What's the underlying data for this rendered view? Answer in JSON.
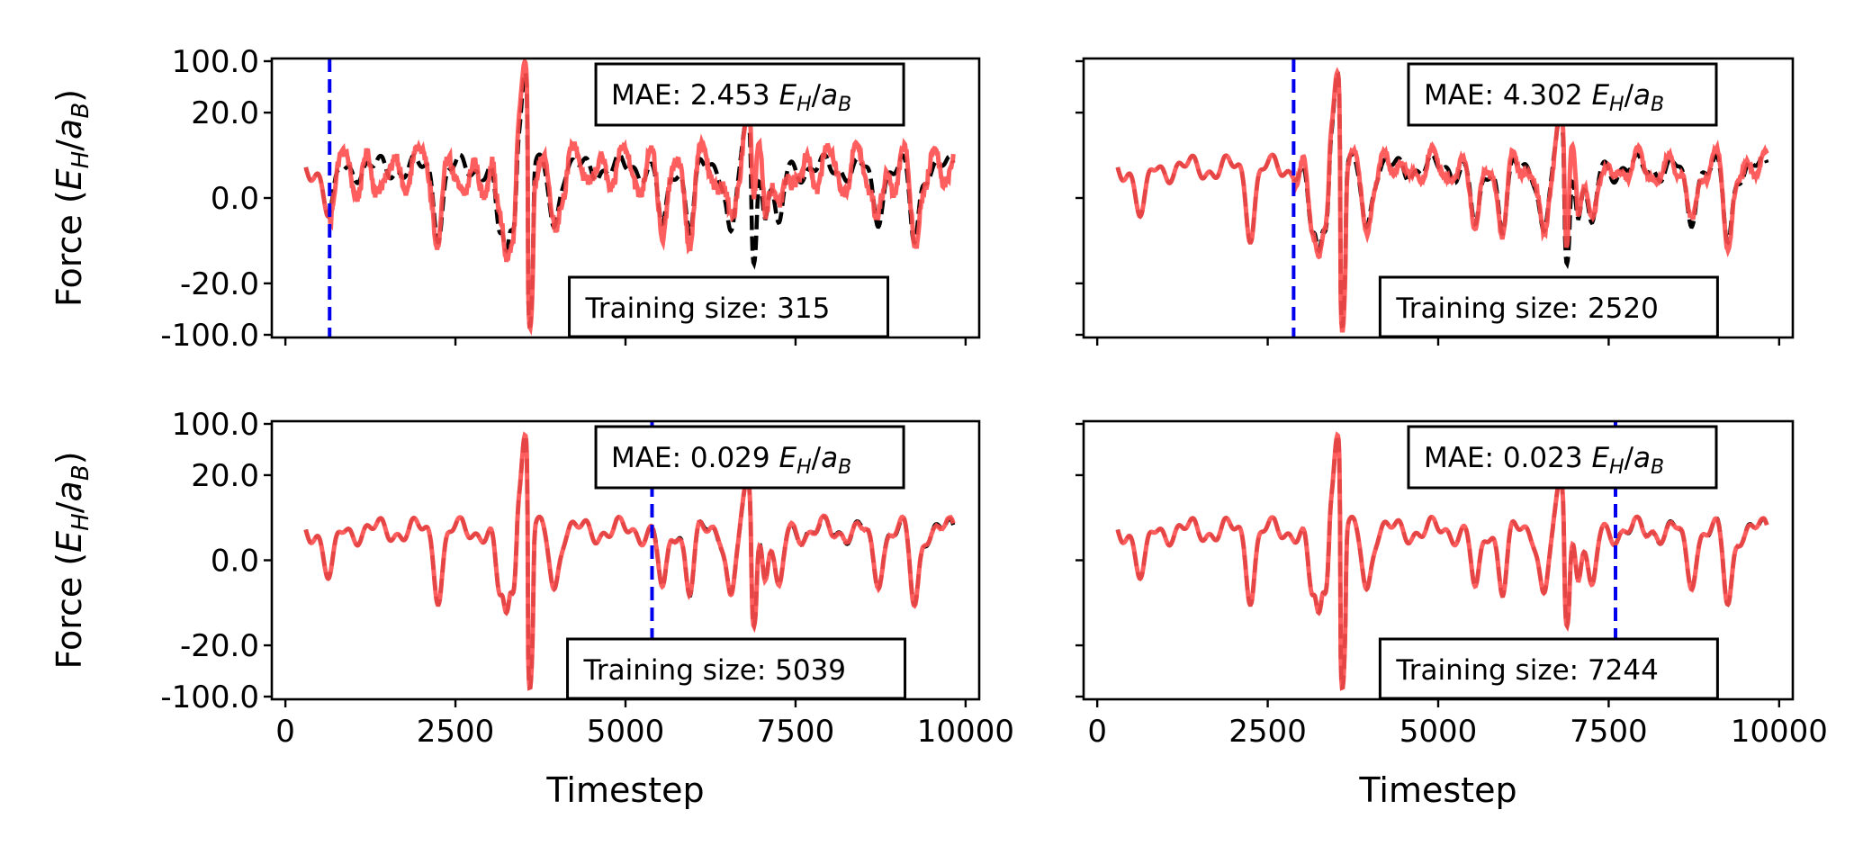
{
  "chart_data": [
    {
      "type": "line",
      "panel": "top-left",
      "ylabel": "Force (E_H/a_B)",
      "xlabel": "",
      "ylim": [
        -100,
        100
      ],
      "yscale": "symlog",
      "xlim": [
        -200,
        10200
      ],
      "yticks": [
        -100.0,
        -20.0,
        0.0,
        20.0,
        100.0
      ],
      "ytick_labels": [
        "-100.0",
        "-20.0",
        "0.0",
        "20.0",
        "100.0"
      ],
      "show_yticklabels": true,
      "show_xticklabels": false,
      "annotation_mae": "MAE: 2.453 E_H/a_B",
      "annotation_training": "Training size: 315",
      "training_split_x": 650,
      "series": [
        {
          "style": "reference-dashed-black"
        },
        {
          "style": "prediction-red"
        }
      ]
    },
    {
      "type": "line",
      "panel": "top-right",
      "ylabel": "",
      "xlabel": "",
      "ylim": [
        -100,
        100
      ],
      "yscale": "symlog",
      "xlim": [
        -200,
        10200
      ],
      "show_yticklabels": false,
      "show_xticklabels": false,
      "annotation_mae": "MAE: 4.302 E_H/a_B",
      "annotation_training": "Training size: 2520",
      "training_split_x": 2880,
      "series": [
        {
          "style": "reference-dashed-black"
        },
        {
          "style": "prediction-red"
        }
      ]
    },
    {
      "type": "line",
      "panel": "bottom-left",
      "ylabel": "Force (E_H/a_B)",
      "xlabel": "Timestep",
      "ylim": [
        -100,
        100
      ],
      "yscale": "symlog",
      "xlim": [
        -200,
        10200
      ],
      "xticks": [
        0,
        2500,
        5000,
        7500,
        10000
      ],
      "show_yticklabels": true,
      "show_xticklabels": true,
      "annotation_mae": "MAE: 0.029 E_H/a_B",
      "annotation_training": "Training size: 5039",
      "training_split_x": 5390,
      "series": [
        {
          "style": "reference-dashed-black"
        },
        {
          "style": "prediction-red"
        }
      ]
    },
    {
      "type": "line",
      "panel": "bottom-right",
      "ylabel": "",
      "xlabel": "Timestep",
      "ylim": [
        -100,
        100
      ],
      "yscale": "symlog",
      "xlim": [
        -200,
        10200
      ],
      "xticks": [
        0,
        2500,
        5000,
        7500,
        10000
      ],
      "show_yticklabels": false,
      "show_xticklabels": true,
      "annotation_mae": "MAE: 0.023 E_H/a_B",
      "annotation_training": "Training size: 7244",
      "training_split_x": 7600,
      "series": [
        {
          "style": "reference-dashed-black"
        },
        {
          "style": "prediction-red"
        }
      ]
    }
  ],
  "colors": {
    "reference": "#000000",
    "prediction": "#ff4d4d",
    "split_line": "#0000ee",
    "axes": "#000000"
  }
}
